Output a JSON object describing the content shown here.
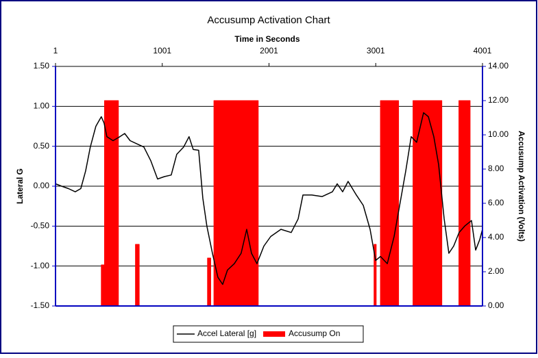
{
  "chart_data": {
    "type": "line",
    "title": "Accusump Activation Chart",
    "x_label": "Time in Seconds",
    "y_label": "Lateral G",
    "y2_label": "Accusump Activation (Volts)",
    "xlim": [
      1,
      4001
    ],
    "xticks": [
      1,
      1001,
      2001,
      3001,
      4001
    ],
    "ylim": [
      -1.5,
      1.5
    ],
    "yticks": [
      {
        "value": -1.5,
        "label": "-1.50"
      },
      {
        "value": -1.0,
        "label": "-1.00"
      },
      {
        "value": -0.5,
        "label": "-0.50"
      },
      {
        "value": 0,
        "label": "0.00"
      },
      {
        "value": 0.5,
        "label": "0.50"
      },
      {
        "value": 1.0,
        "label": "1.00"
      },
      {
        "value": 1.5,
        "label": "1.50"
      }
    ],
    "y2lim": [
      0,
      14
    ],
    "y2ticks": [
      {
        "value": 0,
        "label": "0.00"
      },
      {
        "value": 2,
        "label": "2.00"
      },
      {
        "value": 4,
        "label": "4.00"
      },
      {
        "value": 6,
        "label": "6.00"
      },
      {
        "value": 8,
        "label": "8.00"
      },
      {
        "value": 10,
        "label": "10.00"
      },
      {
        "value": 12,
        "label": "12.00"
      },
      {
        "value": 14,
        "label": "14.00"
      }
    ],
    "grid": true,
    "legend": "bottom",
    "series": [
      {
        "name": "Accel Lateral [g]",
        "color": "#000000",
        "x": [
          1,
          58,
          122,
          186,
          238,
          283,
          327,
          379,
          430,
          456,
          482,
          540,
          604,
          649,
          700,
          764,
          829,
          893,
          957,
          1021,
          1085,
          1137,
          1201,
          1252,
          1291,
          1342,
          1381,
          1419,
          1471,
          1522,
          1567,
          1612,
          1676,
          1740,
          1792,
          1837,
          1888,
          1953,
          2017,
          2113,
          2209,
          2274,
          2319,
          2402,
          2498,
          2595,
          2640,
          2691,
          2742,
          2819,
          2884,
          2948,
          3000,
          3045,
          3109,
          3173,
          3237,
          3282,
          3333,
          3384,
          3449,
          3494,
          3545,
          3590,
          3642,
          3686,
          3731,
          3782,
          3834,
          3898,
          3937,
          3975,
          4001
        ],
        "values": [
          0.03,
          0,
          -0.03,
          -0.07,
          -0.03,
          0.19,
          0.49,
          0.75,
          0.87,
          0.79,
          0.62,
          0.57,
          0.62,
          0.66,
          0.57,
          0.53,
          0.49,
          0.32,
          0.09,
          0.12,
          0.14,
          0.4,
          0.49,
          0.62,
          0.46,
          0.45,
          -0.15,
          -0.5,
          -0.84,
          -1.14,
          -1.23,
          -1.05,
          -0.97,
          -0.84,
          -0.54,
          -0.84,
          -0.97,
          -0.75,
          -0.63,
          -0.54,
          -0.58,
          -0.41,
          -0.11,
          -0.11,
          -0.13,
          -0.07,
          0.03,
          -0.07,
          0.06,
          -0.11,
          -0.24,
          -0.54,
          -0.93,
          -0.88,
          -0.97,
          -0.63,
          -0.15,
          0.19,
          0.62,
          0.55,
          0.92,
          0.87,
          0.62,
          0.27,
          -0.41,
          -0.84,
          -0.75,
          -0.58,
          -0.5,
          -0.43,
          -0.8,
          -0.67,
          -0.54
        ]
      },
      {
        "name": "Accusump On",
        "color": "#ff0000",
        "axis": "y2",
        "x": [
          1,
          430,
          430,
          456,
          456,
          460,
          460,
          590,
          590,
          750,
          750,
          785,
          785,
          1425,
          1425,
          1455,
          1455,
          1485,
          1485,
          1900,
          1900,
          2985,
          2985,
          3005,
          3005,
          3045,
          3045,
          3215,
          3215,
          3350,
          3350,
          3620,
          3620,
          3780,
          3780,
          3885,
          3885,
          4001
        ],
        "values": [
          0,
          0,
          2.4,
          2.4,
          0,
          0,
          12,
          12,
          0,
          0,
          3.6,
          3.6,
          0,
          0,
          2.8,
          2.8,
          0,
          0,
          12,
          12,
          0,
          0,
          3.6,
          3.6,
          0,
          0,
          12,
          12,
          0,
          0,
          12,
          12,
          0,
          0,
          12,
          12,
          0,
          0
        ]
      }
    ]
  }
}
